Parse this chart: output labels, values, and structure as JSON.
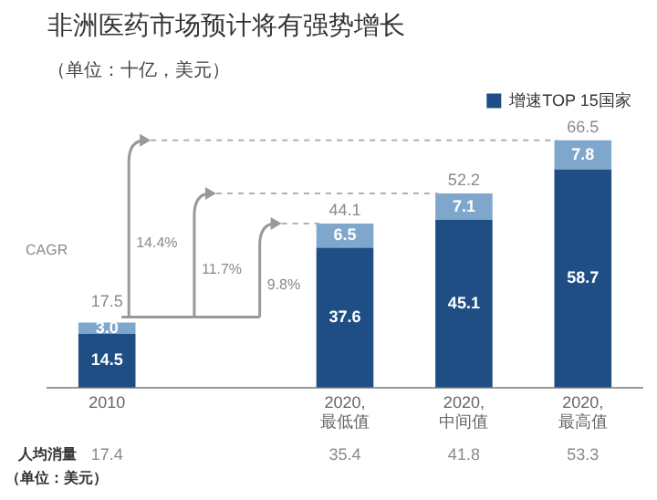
{
  "chart_data": {
    "type": "bar",
    "title": "非洲医药市场预计将有强势增长",
    "subtitle": "（单位：十亿，美元）",
    "categories": [
      "2010",
      null,
      "2020,\n最低值",
      "2020,\n中间值",
      "2020,\n最高值"
    ],
    "series": [
      {
        "name": "增速TOP 15国家",
        "color": "#1f4e85",
        "values": [
          14.5,
          null,
          37.6,
          45.1,
          58.7
        ],
        "value_labels": [
          "14.5",
          null,
          "37.6",
          "45.1",
          "58.7"
        ]
      },
      {
        "color": "#7fa7cc",
        "values": [
          3.0,
          null,
          6.5,
          7.1,
          7.8
        ],
        "value_labels": [
          "3.0",
          null,
          "6.5",
          "7.1",
          "7.8"
        ]
      }
    ],
    "stacked": true,
    "totals": [
      "17.5",
      null,
      "44.1",
      "52.2",
      "66.5"
    ],
    "legend": "top right",
    "annotations": [
      "CAGR",
      "14.4%",
      "11.7%",
      "9.8%",
      "人均消量",
      "（单位：美元）",
      "17.4",
      "35.4",
      "41.8",
      "53.3"
    ]
  }
}
